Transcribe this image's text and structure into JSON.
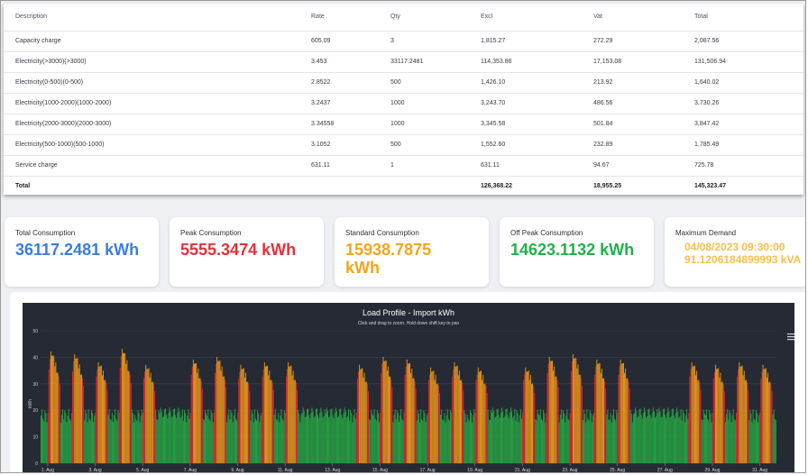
{
  "table": {
    "headers": [
      "Description",
      "Rate",
      "Qty",
      "Excl",
      "Vat",
      "Total"
    ],
    "rows": [
      [
        "Capacity charge",
        "605.09",
        "3",
        "1,815.27",
        "272.29",
        "2,087.56"
      ],
      [
        "Electricity(>3000)(>3000)",
        "3.453",
        "33117.2481",
        "114,353.86",
        "17,153.08",
        "131,506.94"
      ],
      [
        "Electricity(0-500)(0-500)",
        "2.8522",
        "500",
        "1,426.10",
        "213.92",
        "1,640.02"
      ],
      [
        "Electricity(1000-2000)(1000-2000)",
        "3.2437",
        "1000",
        "3,243.70",
        "486.56",
        "3,730.26"
      ],
      [
        "Electricity(2000-3000)(2000-3000)",
        "3.34558",
        "1000",
        "3,345.58",
        "501.84",
        "3,847.42"
      ],
      [
        "Electricity(500-1000)(500-1000)",
        "3.1052",
        "500",
        "1,552.60",
        "232.89",
        "1,785.49"
      ],
      [
        "Service charge",
        "631.11",
        "1",
        "631.11",
        "94.67",
        "725.78"
      ]
    ],
    "total": [
      "Total",
      "",
      "",
      "126,368.22",
      "18,955.25",
      "145,323.47"
    ]
  },
  "stats": [
    {
      "label": "Total Consumption",
      "value": "36117.2481 kWh",
      "color": "#3b7de0"
    },
    {
      "label": "Peak Consumption",
      "value": "5555.3474 kWh",
      "color": "#e0323c"
    },
    {
      "label": "Standard Consumption",
      "value": "15938.7875 kWh",
      "color": "#f2a51d"
    },
    {
      "label": "Off Peak Consumption",
      "value": "14623.1132 kWh",
      "color": "#22b04b"
    },
    {
      "label": "Maximum Demand",
      "value_line1": "04/08/2023 09:30:00",
      "value_line2": "91.1206184899993 kVA",
      "color": "#f5c04a"
    }
  ],
  "chart_data": {
    "type": "bar",
    "title": "Load Profile - Import kWh",
    "subtitle": "Click and drag to zoom. Hold down shift key to pan",
    "ylabel": "kWh",
    "ylim": [
      0,
      50
    ],
    "yticks": [
      "0",
      "10",
      "20",
      "30",
      "40",
      "50"
    ],
    "x_ticks": [
      "1. Aug",
      "3. Aug",
      "5. Aug",
      "7. Aug",
      "9. Aug",
      "11. Aug",
      "13. Aug",
      "15. Aug",
      "17. Aug",
      "19. Aug",
      "21. Aug",
      "23. Aug",
      "25. Aug",
      "27. Aug",
      "29. Aug",
      "31. Aug"
    ],
    "series_colors": {
      "off_peak": "#27a844",
      "standard": "#f29b1a",
      "peak": "#e03030"
    },
    "days": [
      {
        "day": "1",
        "peak": 41,
        "weekend": false
      },
      {
        "day": "2",
        "peak": 40,
        "weekend": false
      },
      {
        "day": "3",
        "peak": 37,
        "weekend": false
      },
      {
        "day": "4",
        "peak": 42,
        "weekend": false
      },
      {
        "day": "5",
        "peak": 36,
        "weekend": false
      },
      {
        "day": "6",
        "peak": 24,
        "weekend": true
      },
      {
        "day": "7",
        "peak": 38,
        "weekend": false
      },
      {
        "day": "8",
        "peak": 39,
        "weekend": false
      },
      {
        "day": "9",
        "peak": 36,
        "weekend": false
      },
      {
        "day": "10",
        "peak": 37,
        "weekend": false
      },
      {
        "day": "11",
        "peak": 37,
        "weekend": false
      },
      {
        "day": "12",
        "peak": 24,
        "weekend": true
      },
      {
        "day": "13",
        "peak": 24,
        "weekend": true
      },
      {
        "day": "14",
        "peak": 36,
        "weekend": false
      },
      {
        "day": "15",
        "peak": 39,
        "weekend": false
      },
      {
        "day": "16",
        "peak": 38,
        "weekend": false
      },
      {
        "day": "17",
        "peak": 35,
        "weekend": false
      },
      {
        "day": "18",
        "peak": 37,
        "weekend": false
      },
      {
        "day": "19",
        "peak": 35,
        "weekend": false
      },
      {
        "day": "20",
        "peak": 23,
        "weekend": true
      },
      {
        "day": "21",
        "peak": 35,
        "weekend": false
      },
      {
        "day": "22",
        "peak": 39,
        "weekend": false
      },
      {
        "day": "23",
        "peak": 40,
        "weekend": false
      },
      {
        "day": "24",
        "peak": 38,
        "weekend": false
      },
      {
        "day": "25",
        "peak": 38,
        "weekend": false
      },
      {
        "day": "26",
        "peak": 24,
        "weekend": true
      },
      {
        "day": "27",
        "peak": 24,
        "weekend": true
      },
      {
        "day": "28",
        "peak": 37,
        "weekend": false
      },
      {
        "day": "29",
        "peak": 36,
        "weekend": false
      },
      {
        "day": "30",
        "peak": 37,
        "weekend": false
      },
      {
        "day": "31",
        "peak": 36,
        "weekend": false
      }
    ]
  }
}
